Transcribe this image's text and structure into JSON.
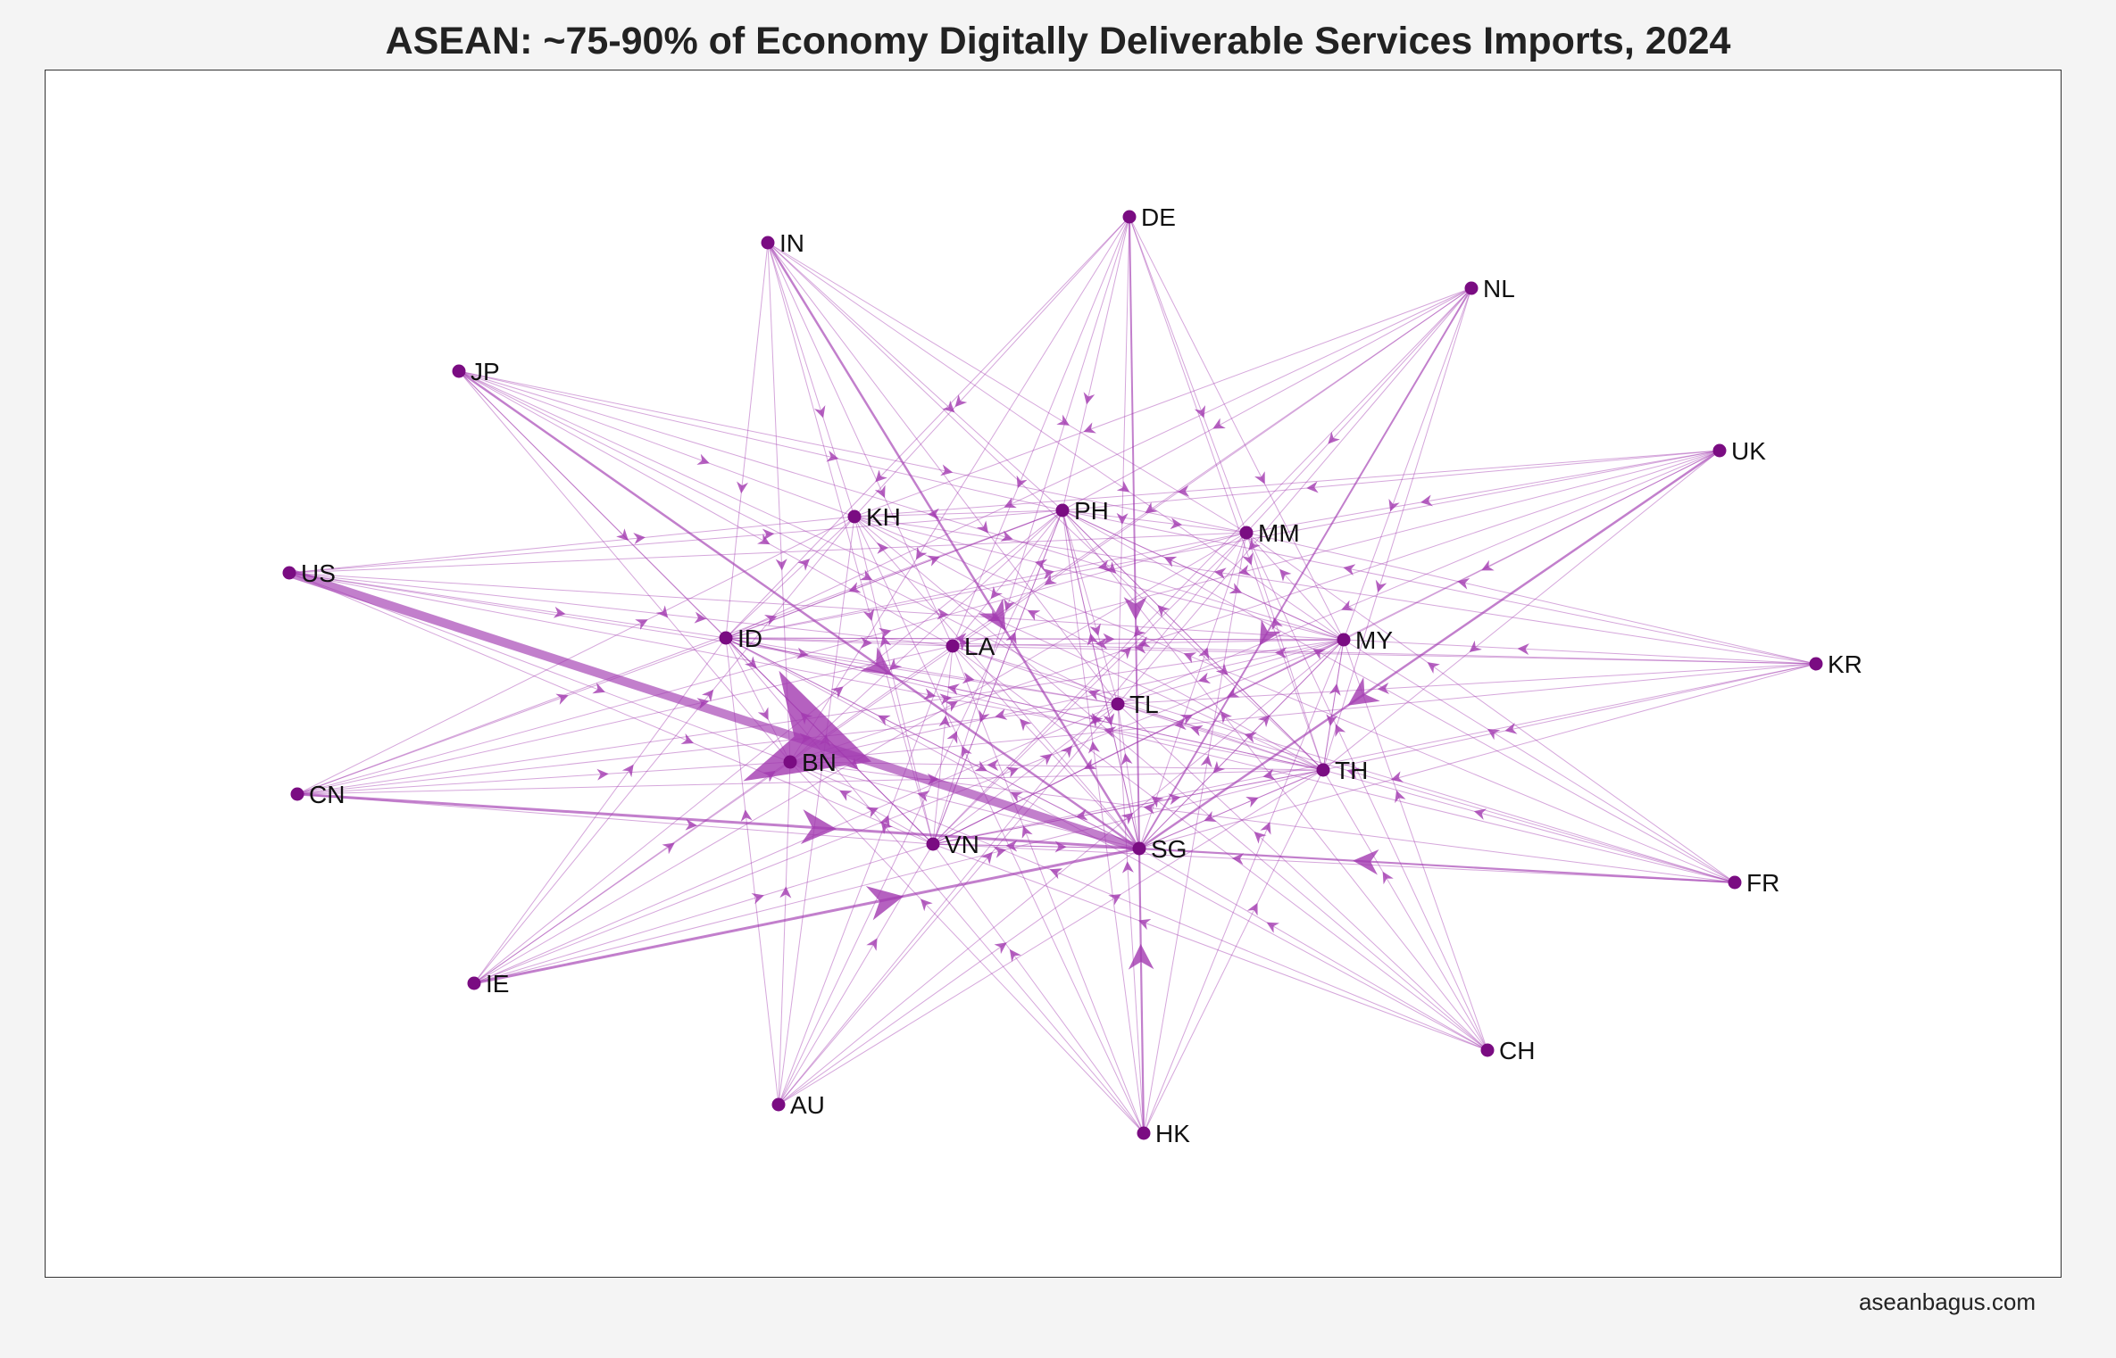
{
  "title": "ASEAN: ~75-90% of Economy Digitally Deliverable Services Imports, 2024",
  "credit": "aseanbagus.com",
  "colors": {
    "node": "#7a0c82",
    "edge": "#a23ab0",
    "frame": "#333333",
    "background": "#f4f4f4"
  },
  "nodes": [
    {
      "id": "IN",
      "label": "IN"
    },
    {
      "id": "DE",
      "label": "DE"
    },
    {
      "id": "NL",
      "label": "NL"
    },
    {
      "id": "JP",
      "label": "JP"
    },
    {
      "id": "UK",
      "label": "UK"
    },
    {
      "id": "KH",
      "label": "KH"
    },
    {
      "id": "PH",
      "label": "PH"
    },
    {
      "id": "MM",
      "label": "MM"
    },
    {
      "id": "US",
      "label": "US"
    },
    {
      "id": "ID",
      "label": "ID"
    },
    {
      "id": "LA",
      "label": "LA"
    },
    {
      "id": "MY",
      "label": "MY"
    },
    {
      "id": "KR",
      "label": "KR"
    },
    {
      "id": "TL",
      "label": "TL"
    },
    {
      "id": "BN",
      "label": "BN"
    },
    {
      "id": "TH",
      "label": "TH"
    },
    {
      "id": "CN",
      "label": "CN"
    },
    {
      "id": "VN",
      "label": "VN"
    },
    {
      "id": "SG",
      "label": "SG"
    },
    {
      "id": "FR",
      "label": "FR"
    },
    {
      "id": "IE",
      "label": "IE"
    },
    {
      "id": "CH",
      "label": "CH"
    },
    {
      "id": "AU",
      "label": "AU"
    },
    {
      "id": "HK",
      "label": "HK"
    }
  ],
  "asean_importers": [
    "BN",
    "KH",
    "ID",
    "LA",
    "MY",
    "MM",
    "PH",
    "SG",
    "TH",
    "TL",
    "VN"
  ],
  "exporters": [
    "IN",
    "DE",
    "NL",
    "JP",
    "UK",
    "US",
    "KR",
    "CN",
    "FR",
    "IE",
    "CH",
    "AU",
    "HK",
    "SG",
    "MY",
    "TH",
    "ID",
    "PH",
    "VN"
  ],
  "edge_weights": [
    {
      "source": "US",
      "target": "SG",
      "weight": 10
    },
    {
      "source": "CN",
      "target": "SG",
      "weight": 3
    },
    {
      "source": "IE",
      "target": "SG",
      "weight": 3
    },
    {
      "source": "IN",
      "target": "SG",
      "weight": 2.5
    },
    {
      "source": "JP",
      "target": "SG",
      "weight": 2.5
    },
    {
      "source": "UK",
      "target": "SG",
      "weight": 2.5
    },
    {
      "source": "FR",
      "target": "SG",
      "weight": 2.2
    },
    {
      "source": "HK",
      "target": "SG",
      "weight": 2.2
    },
    {
      "source": "NL",
      "target": "SG",
      "weight": 2
    },
    {
      "source": "DE",
      "target": "SG",
      "weight": 2
    }
  ]
}
